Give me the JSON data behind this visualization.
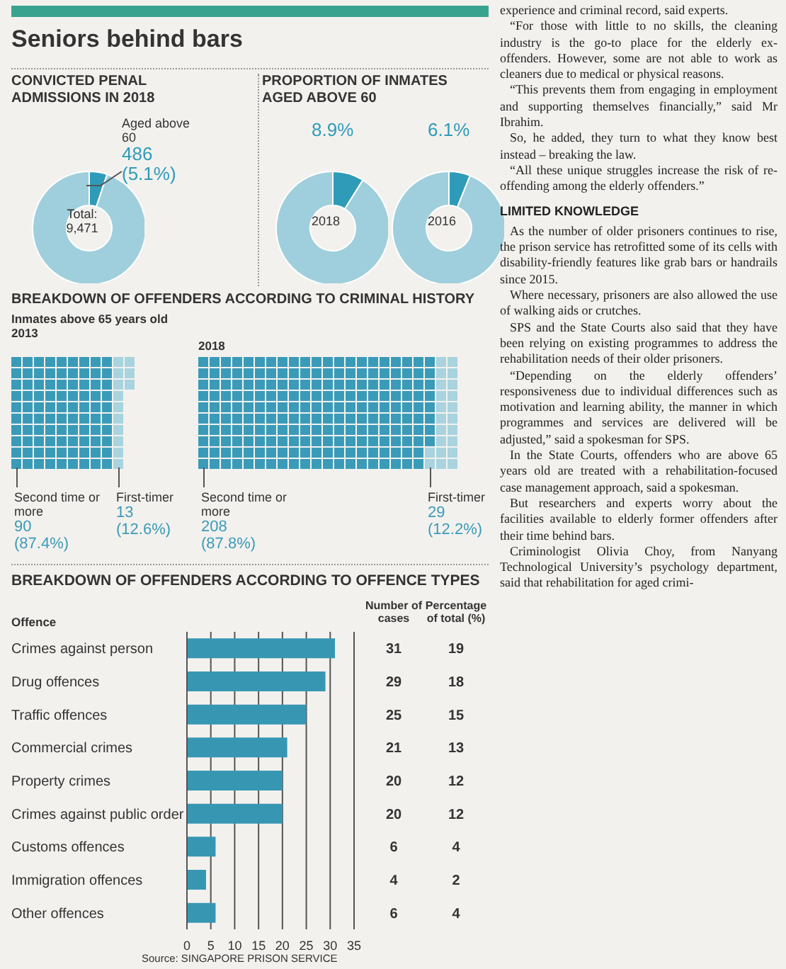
{
  "chart_data": [
    {
      "type": "other",
      "title": "Seniors behind bars"
    },
    {
      "type": "donut",
      "title": "CONVICTED PENAL ADMISSIONS IN 2018",
      "categories": [
        "Aged above 60",
        null
      ],
      "values": [
        486,
        8985
      ],
      "colors": [
        "#2f9bb8",
        "#9fcfdc"
      ],
      "value_labels": [
        "486\n(5.1%)",
        null
      ],
      "annotations": [
        "Total:\n9,471"
      ]
    },
    {
      "type": "donut",
      "title": "PROPORTION OF INMATES AGED ABOVE 60",
      "categories": [
        null,
        null
      ],
      "values": [
        8.9,
        91.1
      ],
      "colors": [
        "#2f9bb8",
        "#9fcfdc"
      ],
      "value_labels": [
        "8.9%",
        null
      ],
      "annotations": [
        "2018"
      ]
    },
    {
      "type": "donut",
      "categories": [
        null,
        null
      ],
      "values": [
        6.1,
        93.9
      ],
      "colors": [
        "#2f9bb8",
        "#9fcfdc"
      ],
      "value_labels": [
        "6.1%",
        null
      ],
      "annotations": [
        "2016"
      ]
    },
    {
      "type": "other",
      "title": "BREAKDOWN OF OFFENDERS ACCORDING TO CRIMINAL HISTORY",
      "subtitle": "Inmates above 65 years old",
      "annotations": [
        "2013"
      ],
      "categories": [
        "Second time or more",
        "First-timer"
      ],
      "values": [
        90,
        13
      ],
      "colors": [
        "#3a9bb8",
        "#a9d3de"
      ],
      "value_labels": [
        "90\n(87.4%)",
        "13\n(12.6%)"
      ]
    },
    {
      "type": "other",
      "title": "2018",
      "categories": [
        "Second time or more",
        "First-timer"
      ],
      "values": [
        208,
        29
      ],
      "colors": [
        "#3a9bb8",
        "#a9d3de"
      ],
      "value_labels": [
        "208\n(87.8%)",
        "29\n(12.2%)"
      ]
    },
    {
      "type": "bar",
      "orientation": "horizontal",
      "title": "BREAKDOWN OF OFFENDERS ACCORDING TO OFFENCE TYPES",
      "categories": [
        "Crimes against person",
        "Drug offences",
        "Traffic offences",
        "Commercial crimes",
        "Property crimes",
        "Crimes against public order",
        "Customs offences",
        "Immigration offences",
        "Other offences"
      ],
      "values": [
        31,
        29,
        25,
        21,
        20,
        20,
        6,
        4,
        6
      ],
      "color": "#3797b3",
      "xlim": [
        0,
        35
      ],
      "xticks": [
        0,
        5,
        10,
        15,
        20,
        25,
        30,
        35
      ],
      "grid": "x",
      "data_labels": true,
      "annotations": [
        "Offence",
        "Number of cases",
        "Percentage of total (%)",
        "Source: SINGAPORE PRISON SERVICE",
        "19",
        "18",
        "15",
        "13",
        "12",
        "12",
        "4",
        "2",
        "4"
      ]
    },
    {
      "type": "other",
      "annotations": [
        "experience and criminal record, said experts.",
        "“For those with little to no skills, the cleaning industry is the go-to place for the elderly ex-offenders. However, some are not able to work as cleaners due to medical or physical reasons.",
        "“This prevents them from engaging in employment and supporting themselves financially,” said Mr Ibrahim.",
        "So, he added, they turn to what they know best instead – breaking the law.",
        "“All these unique struggles increase the risk of re-offending among the elderly offenders.”",
        "LIMITED KNOWLEDGE",
        "As the number of older prisoners continues to rise, the prison service has retrofitted some of its cells with disability-friendly features like grab bars or handrails since 2015.",
        "Where necessary, prisoners are also allowed the use of walking aids or crutches.",
        "SPS and the State Courts also said that they have been relying on existing programmes to address the rehabilitation needs of their older prisoners.",
        "“Depending on the elderly offenders’ responsiveness due to individual differences such as motivation and learning ability, the manner in which programmes and services are delivered will be adjusted,” said a spokesman for SPS.",
        "In the State Courts, offenders who are above 65 years old are treated with a rehabilitation-focused case management approach, said a spokesman.",
        "But researchers and experts worry about the facilities available to elderly former offenders after their time behind bars.",
        "Criminologist Olivia Choy, from Nanyang Technological University’s psychology department, said that rehabilitation for aged crimi-"
      ]
    }
  ]
}
